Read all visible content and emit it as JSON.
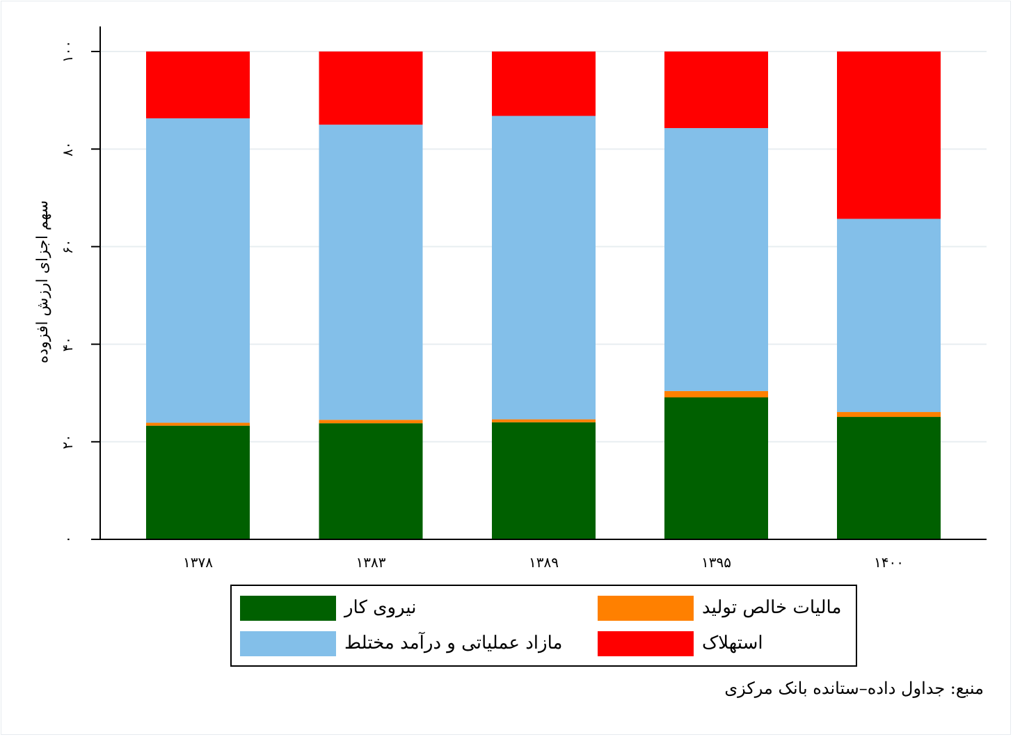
{
  "chart_data": {
    "type": "bar",
    "stacked": true,
    "categories": [
      "۱۳۷۸",
      "۱۳۸۳",
      "۱۳۸۹",
      "۱۳۹۵",
      "۱۴۰۰"
    ],
    "series": [
      {
        "name": "نیروی کار",
        "color": "#006000",
        "values": [
          23.3,
          23.8,
          24.0,
          29.1,
          25.1
        ]
      },
      {
        "name": "مالیات خالص تولید",
        "color": "#ff8000",
        "values": [
          0.6,
          0.7,
          0.6,
          1.3,
          1.0
        ]
      },
      {
        "name": "مازاد عملیاتی و درآمد مختلط",
        "color": "#83bfe9",
        "values": [
          62.4,
          60.5,
          62.2,
          53.9,
          39.6
        ]
      },
      {
        "name": "استهلاک",
        "color": "#ff0000",
        "values": [
          13.7,
          15.0,
          13.2,
          15.7,
          34.3
        ]
      }
    ],
    "yticks": [
      0,
      20,
      40,
      60,
      80,
      100
    ],
    "ytick_labels": [
      "۰",
      "۲۰",
      "۴۰",
      "۶۰",
      "۸۰",
      "۱۰۰"
    ],
    "ylim": [
      0,
      105
    ],
    "ylabel": "سهم اجزای ارزش افزوده",
    "xlabel": "",
    "grid": true,
    "grid_color": "#e8eef1",
    "legend_position": "bottom",
    "source_note": "منبع: جداول داده–ستانده بانک مرکزی"
  }
}
